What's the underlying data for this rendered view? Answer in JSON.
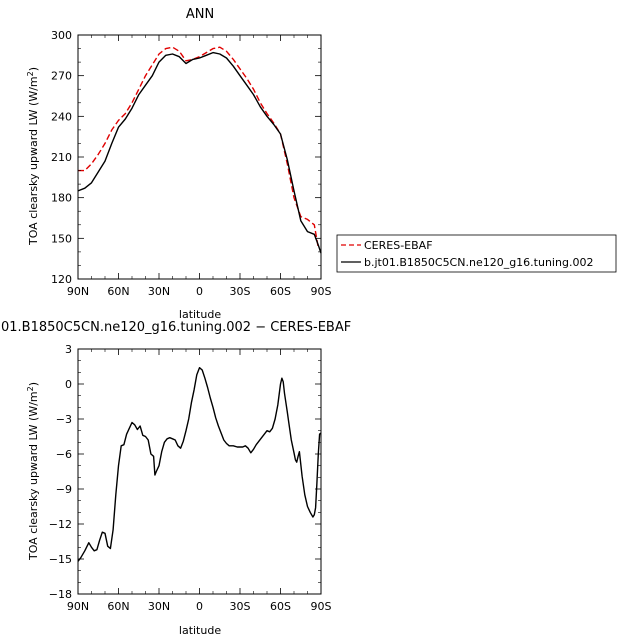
{
  "chart_data": [
    {
      "type": "line",
      "title": "ANN",
      "xlabel": "latitude",
      "ylabel": "TOA clearsky upward LW (W/m²)",
      "ylabel_main": "TOA clearsky upward LW (W/m",
      "ylabel_sup": "2",
      "ylabel_end": ")",
      "xlim": [
        90,
        -90
      ],
      "ylim": [
        120,
        300
      ],
      "xticks": [
        90,
        60,
        30,
        0,
        -30,
        -60,
        -90
      ],
      "xtick_labels": [
        "90N",
        "60N",
        "30N",
        "0",
        "30S",
        "60S",
        "90S"
      ],
      "yticks": [
        120,
        150,
        180,
        210,
        240,
        270,
        300
      ],
      "ytick_labels": [
        "120",
        "150",
        "180",
        "210",
        "240",
        "270",
        "300"
      ],
      "legend_position": "right",
      "series": [
        {
          "name": "CERES-EBAF",
          "color": "#e00000",
          "dash": true,
          "x": [
            90,
            85,
            80,
            75,
            70,
            65,
            60,
            55,
            50,
            45,
            40,
            35,
            30,
            25,
            20,
            15,
            10,
            5,
            0,
            -5,
            -10,
            -15,
            -20,
            -25,
            -30,
            -35,
            -40,
            -45,
            -50,
            -55,
            -60,
            -65,
            -70,
            -75,
            -80,
            -85,
            -88
          ],
          "y": [
            200,
            200,
            205,
            212,
            220,
            230,
            237,
            242,
            250,
            260,
            270,
            278,
            286,
            290,
            291,
            288,
            281,
            282,
            284,
            287,
            290,
            291,
            288,
            282,
            275,
            268,
            260,
            250,
            242,
            235,
            227,
            205,
            180,
            166,
            164,
            160,
            143
          ]
        },
        {
          "name": "b.jt01.B1850C5CN.ne120_g16.tuning.002",
          "color": "#000000",
          "dash": false,
          "x": [
            90,
            85,
            80,
            75,
            70,
            65,
            60,
            55,
            50,
            45,
            40,
            35,
            30,
            25,
            20,
            15,
            10,
            5,
            0,
            -5,
            -10,
            -15,
            -20,
            -25,
            -30,
            -35,
            -40,
            -45,
            -50,
            -55,
            -60,
            -65,
            -70,
            -75,
            -80,
            -85,
            -88,
            -90
          ],
          "y": [
            185,
            187,
            191,
            199,
            207,
            220,
            232,
            238,
            246,
            256,
            263,
            270,
            280,
            285,
            286,
            284,
            279,
            282,
            283,
            285,
            287,
            286,
            283,
            277,
            270,
            263,
            256,
            247,
            240,
            234,
            227,
            208,
            185,
            163,
            155,
            153,
            145,
            139
          ]
        }
      ]
    },
    {
      "type": "line",
      "title": "01.B1850C5CN.ne120_g16.tuning.002 − CERES-EBAF",
      "xlabel": "latitude",
      "ylabel": "TOA clearsky upward LW (W/m²)",
      "ylabel_main": "TOA clearsky upward LW (W/m",
      "ylabel_sup": "2",
      "ylabel_end": ")",
      "xlim": [
        90,
        -90
      ],
      "ylim": [
        -18,
        3
      ],
      "xticks": [
        90,
        60,
        30,
        0,
        -30,
        -60,
        -90
      ],
      "xtick_labels": [
        "90N",
        "60N",
        "30N",
        "0",
        "30S",
        "60S",
        "90S"
      ],
      "yticks": [
        -18,
        -15,
        -12,
        -9,
        -6,
        -3,
        0,
        3
      ],
      "ytick_labels": [
        "−18",
        "−15",
        "−12",
        "−9",
        "−6",
        "−3",
        "0",
        "3"
      ],
      "series": [
        {
          "color": "#000000",
          "dash": false,
          "x": [
            90,
            88,
            85,
            82,
            80,
            78,
            76,
            74,
            72,
            70,
            68,
            66,
            64,
            62,
            60,
            58,
            56,
            54,
            52,
            50,
            48,
            46,
            44,
            42,
            40,
            38,
            36,
            34,
            33,
            32,
            30,
            28,
            26,
            24,
            22,
            20,
            18,
            16,
            14,
            12,
            10,
            8,
            6,
            4,
            2,
            0,
            -2,
            -4,
            -6,
            -8,
            -10,
            -12,
            -14,
            -16,
            -18,
            -20,
            -22,
            -25,
            -28,
            -30,
            -32,
            -34,
            -36,
            -38,
            -40,
            -42,
            -44,
            -46,
            -48,
            -50,
            -52,
            -54,
            -56,
            -58,
            -60,
            -61,
            -62,
            -63,
            -64,
            -65,
            -66,
            -68,
            -70,
            -71,
            -72,
            -73,
            -74,
            -76,
            -78,
            -80,
            -82,
            -84,
            -85,
            -86,
            -87,
            -88,
            -89,
            -90
          ],
          "y": [
            -15.2,
            -14.9,
            -14.3,
            -13.6,
            -14.0,
            -14.3,
            -14.2,
            -13.4,
            -12.7,
            -12.8,
            -13.9,
            -14.1,
            -12.5,
            -9.5,
            -7.0,
            -5.3,
            -5.2,
            -4.3,
            -3.8,
            -3.3,
            -3.5,
            -3.9,
            -3.6,
            -4.4,
            -4.5,
            -4.8,
            -6.0,
            -6.2,
            -7.8,
            -7.5,
            -7.0,
            -5.8,
            -5.0,
            -4.7,
            -4.6,
            -4.7,
            -4.8,
            -5.3,
            -5.5,
            -4.9,
            -4.0,
            -3.0,
            -1.6,
            -0.5,
            0.8,
            1.4,
            1.2,
            0.5,
            -0.3,
            -1.2,
            -2.0,
            -2.9,
            -3.6,
            -4.2,
            -4.8,
            -5.1,
            -5.3,
            -5.3,
            -5.4,
            -5.4,
            -5.4,
            -5.3,
            -5.5,
            -5.9,
            -5.6,
            -5.2,
            -4.9,
            -4.6,
            -4.3,
            -4.0,
            -4.1,
            -3.8,
            -3.0,
            -1.8,
            0.0,
            0.5,
            0.2,
            -0.8,
            -1.6,
            -2.4,
            -3.2,
            -4.8,
            -5.9,
            -6.5,
            -6.7,
            -6.2,
            -5.8,
            -7.9,
            -9.5,
            -10.5,
            -11.0,
            -11.4,
            -11.2,
            -10.6,
            -8.5,
            -6.0,
            -4.3,
            -4.2
          ]
        }
      ]
    }
  ]
}
